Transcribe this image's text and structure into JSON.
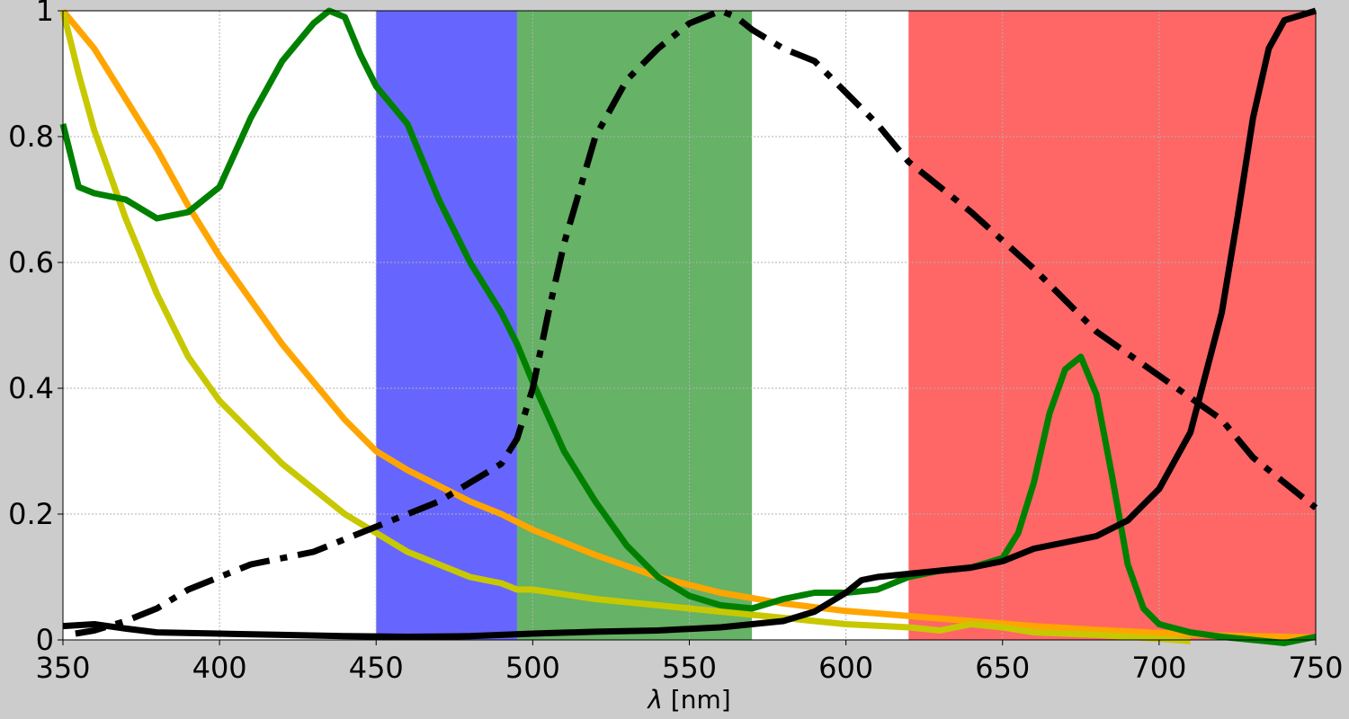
{
  "chart_data": {
    "type": "line",
    "title": "",
    "xlabel_symbol": "λ",
    "xlabel_unit": " [nm]",
    "ylabel": "",
    "xlim": [
      350,
      750
    ],
    "ylim": [
      0,
      1.0
    ],
    "grid": true,
    "x_ticks": [
      350,
      400,
      450,
      500,
      550,
      600,
      650,
      700,
      750
    ],
    "x_tick_labels": [
      "350",
      "400",
      "450",
      "500",
      "550",
      "600",
      "650",
      "700",
      "750"
    ],
    "y_ticks": [
      0,
      0.2,
      0.4,
      0.6,
      0.8,
      1.0
    ],
    "y_tick_labels": [
      "0",
      "0.2",
      "0.4",
      "0.6",
      "0.8",
      "1"
    ],
    "bands": [
      {
        "range": [
          450,
          495
        ],
        "color": "#6666ff"
      },
      {
        "range": [
          495,
          570
        ],
        "color": "#66b266"
      },
      {
        "range": [
          620,
          750
        ],
        "color": "#ff6666"
      }
    ],
    "series": [
      {
        "color": "#ffa500",
        "style": "solid",
        "x": [
          350,
          360,
          370,
          380,
          390,
          400,
          410,
          420,
          430,
          440,
          450,
          460,
          470,
          480,
          490,
          500,
          520,
          540,
          560,
          580,
          600,
          620,
          640,
          660,
          680,
          700,
          720,
          750
        ],
        "values": [
          1.0,
          0.94,
          0.86,
          0.78,
          0.69,
          0.61,
          0.54,
          0.47,
          0.41,
          0.35,
          0.3,
          0.27,
          0.245,
          0.22,
          0.2,
          0.175,
          0.135,
          0.1,
          0.075,
          0.058,
          0.046,
          0.038,
          0.03,
          0.022,
          0.016,
          0.011,
          0.007,
          0.004
        ]
      },
      {
        "color": "#c8c800",
        "style": "solid",
        "x": [
          350,
          355,
          360,
          370,
          380,
          390,
          400,
          410,
          420,
          430,
          440,
          450,
          460,
          470,
          480,
          490,
          495,
          500,
          520,
          540,
          560,
          580,
          600,
          620,
          630,
          640,
          650,
          660,
          680,
          700,
          710
        ],
        "values": [
          1.0,
          0.9,
          0.81,
          0.67,
          0.55,
          0.45,
          0.38,
          0.33,
          0.28,
          0.24,
          0.2,
          0.17,
          0.14,
          0.12,
          0.1,
          0.09,
          0.08,
          0.08,
          0.065,
          0.055,
          0.045,
          0.035,
          0.025,
          0.02,
          0.015,
          0.025,
          0.02,
          0.012,
          0.008,
          0.002,
          -0.002
        ]
      },
      {
        "color": "#008000",
        "style": "solid",
        "x": [
          350,
          355,
          360,
          370,
          380,
          390,
          400,
          410,
          420,
          430,
          435,
          440,
          445,
          450,
          460,
          470,
          480,
          490,
          495,
          500,
          510,
          520,
          530,
          540,
          550,
          560,
          570,
          580,
          590,
          600,
          610,
          620,
          630,
          640,
          650,
          655,
          660,
          665,
          670,
          675,
          680,
          685,
          690,
          695,
          700,
          710,
          720,
          730,
          740,
          750
        ],
        "values": [
          0.82,
          0.72,
          0.71,
          0.7,
          0.67,
          0.68,
          0.72,
          0.83,
          0.92,
          0.98,
          1.0,
          0.99,
          0.93,
          0.88,
          0.82,
          0.7,
          0.6,
          0.52,
          0.47,
          0.41,
          0.3,
          0.22,
          0.15,
          0.1,
          0.07,
          0.055,
          0.05,
          0.065,
          0.075,
          0.075,
          0.08,
          0.1,
          0.11,
          0.115,
          0.13,
          0.17,
          0.25,
          0.36,
          0.43,
          0.45,
          0.39,
          0.26,
          0.12,
          0.05,
          0.025,
          0.012,
          0.005,
          0.0,
          -0.005,
          0.005
        ]
      },
      {
        "color": "#000000",
        "style": "solid",
        "x": [
          350,
          360,
          370,
          380,
          400,
          420,
          440,
          460,
          480,
          500,
          520,
          540,
          560,
          580,
          590,
          600,
          605,
          610,
          620,
          640,
          650,
          660,
          670,
          680,
          690,
          700,
          710,
          720,
          725,
          730,
          735,
          740,
          750
        ],
        "values": [
          0.022,
          0.025,
          0.018,
          0.012,
          0.01,
          0.008,
          0.006,
          0.005,
          0.006,
          0.01,
          0.013,
          0.015,
          0.02,
          0.03,
          0.045,
          0.075,
          0.095,
          0.1,
          0.105,
          0.115,
          0.125,
          0.145,
          0.155,
          0.165,
          0.19,
          0.24,
          0.33,
          0.52,
          0.67,
          0.83,
          0.94,
          0.985,
          1.0
        ]
      },
      {
        "color": "#000000",
        "style": "dashdot",
        "x": [
          354,
          360,
          370,
          380,
          390,
          400,
          410,
          420,
          430,
          440,
          450,
          460,
          470,
          480,
          490,
          495,
          500,
          505,
          510,
          520,
          530,
          540,
          550,
          560,
          565,
          570,
          580,
          590,
          600,
          610,
          620,
          640,
          660,
          680,
          700,
          720,
          730,
          740,
          750
        ],
        "values": [
          0.01,
          0.015,
          0.03,
          0.05,
          0.08,
          0.1,
          0.12,
          0.13,
          0.14,
          0.16,
          0.18,
          0.2,
          0.22,
          0.25,
          0.28,
          0.32,
          0.4,
          0.52,
          0.63,
          0.8,
          0.89,
          0.94,
          0.98,
          1.0,
          0.99,
          0.97,
          0.94,
          0.92,
          0.87,
          0.82,
          0.76,
          0.68,
          0.59,
          0.49,
          0.42,
          0.35,
          0.29,
          0.25,
          0.21
        ]
      }
    ]
  }
}
